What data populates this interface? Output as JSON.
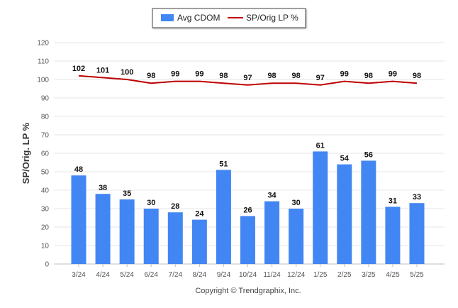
{
  "chart_data": {
    "type": "bar",
    "categories": [
      "3/24",
      "4/24",
      "5/24",
      "6/24",
      "7/24",
      "8/24",
      "9/24",
      "10/24",
      "11/24",
      "12/24",
      "1/25",
      "2/25",
      "3/25",
      "4/25",
      "5/25"
    ],
    "series": [
      {
        "name": "Avg CDOM",
        "kind": "bar",
        "color": "#4286f4",
        "values": [
          48,
          38,
          35,
          30,
          28,
          24,
          51,
          26,
          34,
          30,
          61,
          54,
          56,
          31,
          33
        ]
      },
      {
        "name": "SP/Orig LP %",
        "kind": "line",
        "color": "#c00000",
        "values": [
          102,
          101,
          100,
          98,
          99,
          99,
          98,
          97,
          98,
          98,
          97,
          99,
          98,
          99,
          98
        ]
      }
    ],
    "ylabel": "SP/Orig. LP %",
    "xlabel": "",
    "ylim": [
      0,
      120
    ],
    "yticks": [
      0,
      10,
      20,
      30,
      40,
      50,
      60,
      70,
      80,
      90,
      100,
      110,
      120
    ],
    "grid": true,
    "legend_position": "top"
  },
  "footer": {
    "copyright": "Copyright © Trendgraphix, Inc."
  }
}
